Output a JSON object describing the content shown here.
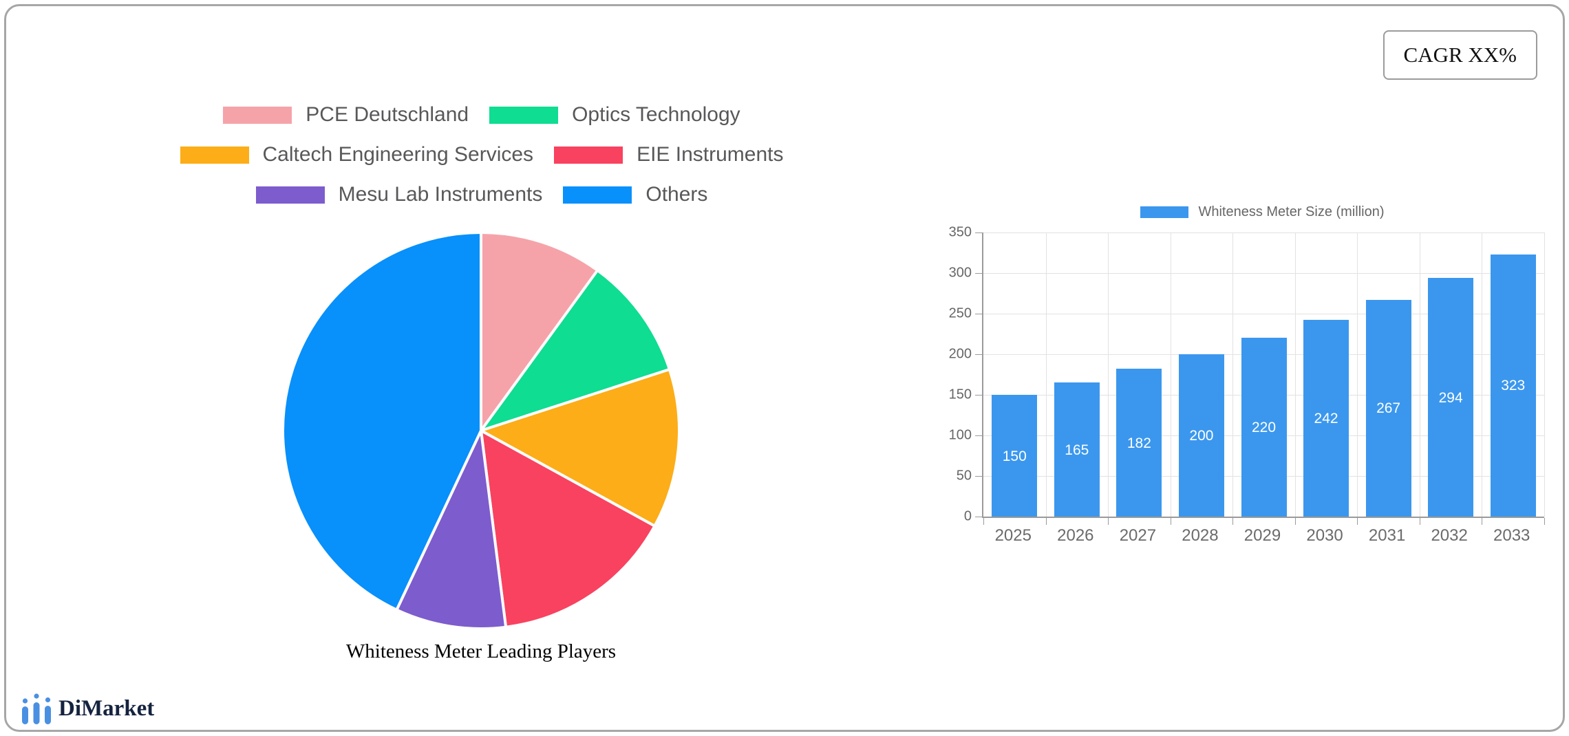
{
  "cagr_label": "CAGR XX%",
  "brand": {
    "name": "DiMarket"
  },
  "chart_data": [
    {
      "type": "pie",
      "title": "Whiteness Meter Leading Players",
      "legend_position": "top",
      "direction": "clockwise",
      "start_angle_deg": 0,
      "labels": [
        "PCE Deutschland",
        "Optics Technology",
        "Caltech Engineering Services",
        "EIE Instruments",
        "Mesu Lab Instruments",
        "Others"
      ],
      "values_percent": [
        10,
        10,
        13,
        15,
        9,
        43
      ],
      "colors": [
        "#f5a3a9",
        "#0edd92",
        "#fcad18",
        "#f9425f",
        "#7d5ccd",
        "#0890fb"
      ]
    },
    {
      "type": "bar",
      "legend": "Whiteness Meter Size (million)",
      "categories": [
        "2025",
        "2026",
        "2027",
        "2028",
        "2029",
        "2030",
        "2031",
        "2032",
        "2033"
      ],
      "values": [
        150,
        165,
        182,
        200,
        220,
        242,
        267,
        294,
        323
      ],
      "bar_color": "#3b97ee",
      "value_label_color": "#ffffff",
      "ylim": [
        0,
        350
      ],
      "ytick_step": 50,
      "grid": true,
      "legend_position": "top"
    }
  ]
}
